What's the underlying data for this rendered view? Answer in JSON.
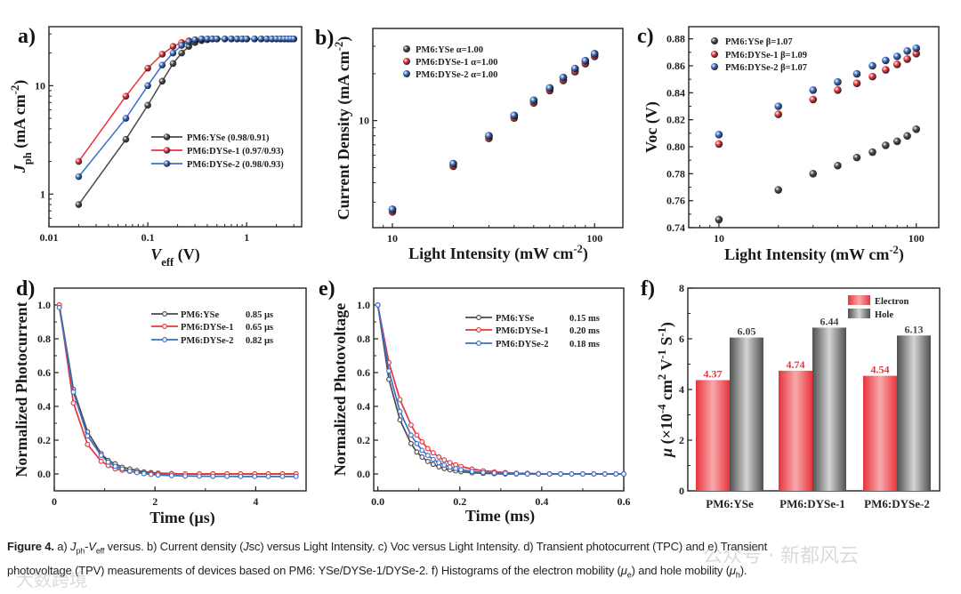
{
  "chart_data": [
    {
      "panel_label": "a)",
      "type": "line",
      "xscale": "log",
      "yscale": "log",
      "xlim": [
        0.01,
        3.6
      ],
      "ylim": [
        0.5,
        35
      ],
      "xticks": [
        {
          "v": 0.01,
          "l": "0.01"
        },
        {
          "v": 0.1,
          "l": "0.1"
        },
        {
          "v": 1,
          "l": "1"
        }
      ],
      "yticks": [
        {
          "v": 1,
          "l": "1"
        },
        {
          "v": 10,
          "l": "10"
        }
      ],
      "xlabel": [
        {
          "t": "V",
          "s": "i"
        },
        {
          "t": "eff",
          "s": "sub"
        },
        {
          "t": " (V)",
          "s": ""
        }
      ],
      "ylabel": [
        {
          "t": "J",
          "s": "i"
        },
        {
          "t": "ph",
          "s": "sub"
        },
        {
          "t": " (mA cm",
          "s": ""
        },
        {
          "t": "-2",
          "s": "sup"
        },
        {
          "t": ")",
          "s": ""
        }
      ],
      "x": [
        0.02,
        0.06,
        0.1,
        0.14,
        0.18,
        0.22,
        0.26,
        0.3,
        0.35,
        0.4,
        0.45,
        0.5,
        0.6,
        0.7,
        0.8,
        0.9,
        1.0,
        1.2,
        1.4,
        1.6,
        1.8,
        2.0,
        2.2,
        2.4,
        2.6,
        2.8,
        3.0
      ],
      "series": [
        {
          "name": "PM6:YSe",
          "legend": "PM6:YSe (0.98/0.91)",
          "color": "#4a4a4a",
          "y": [
            0.8,
            3.2,
            6.6,
            11,
            16,
            20,
            23,
            25,
            26,
            26.5,
            27,
            27,
            27,
            27,
            27,
            27,
            27,
            27,
            27,
            27,
            27,
            27,
            27,
            27,
            27,
            27,
            27
          ]
        },
        {
          "name": "PM6:DYSe-1",
          "legend": "PM6:DYSe-1 (0.97/0.93)",
          "color": "#e8343c",
          "y": [
            2.0,
            8.0,
            14.5,
            19.5,
            23,
            25,
            26,
            26.5,
            27,
            27,
            27,
            27,
            27,
            27,
            27,
            27,
            27,
            27,
            27,
            27,
            27,
            27,
            27,
            27,
            27,
            27,
            27
          ]
        },
        {
          "name": "PM6:DYSe-2",
          "legend": "PM6:DYSe-2 (0.98/0.93)",
          "color": "#3a6fc8",
          "y": [
            1.45,
            5.0,
            10.0,
            15.5,
            20,
            23.5,
            25.5,
            26.5,
            27,
            27,
            27,
            27,
            27,
            27,
            27,
            27,
            27,
            27,
            27,
            27,
            27,
            27,
            27,
            27,
            27,
            27,
            27
          ]
        }
      ]
    },
    {
      "panel_label": "b)",
      "type": "scatter",
      "xscale": "log",
      "yscale": "log",
      "xlim": [
        8,
        138
      ],
      "ylim": [
        2.06,
        39
      ],
      "xticks": [
        {
          "v": 10,
          "l": "10"
        },
        {
          "v": 100,
          "l": "100"
        }
      ],
      "yticks": [
        {
          "v": 10,
          "l": "10"
        }
      ],
      "xlabel": [
        {
          "t": "Light Intensity (mW cm",
          "s": ""
        },
        {
          "t": "-2",
          "s": "sup"
        },
        {
          "t": ")",
          "s": ""
        }
      ],
      "ylabel": [
        {
          "t": "Current Density (mA cm",
          "s": ""
        },
        {
          "t": "-2",
          "s": "sup"
        },
        {
          "t": ")",
          "s": ""
        }
      ],
      "x": [
        10,
        20,
        30,
        40,
        50,
        60,
        70,
        80,
        90,
        100
      ],
      "series": [
        {
          "name": "PM6:YSe",
          "legend": "PM6:YSe α=1.00",
          "color": "#4a4a4a",
          "y": [
            2.7,
            5.3,
            8.0,
            10.8,
            13.5,
            16.2,
            18.9,
            21.5,
            24.2,
            26.9
          ]
        },
        {
          "name": "PM6:DYSe-1",
          "legend": "PM6:DYSe-1 α=1.00",
          "color": "#e8343c",
          "y": [
            2.6,
            5.1,
            7.7,
            10.4,
            13.0,
            15.6,
            18.1,
            20.6,
            23.2,
            25.8
          ]
        },
        {
          "name": "PM6:DYSe-2",
          "legend": "PM6:DYSe-2 α=1.00",
          "color": "#3a6fc8",
          "y": [
            2.7,
            5.3,
            8.0,
            10.8,
            13.5,
            16.2,
            18.9,
            21.6,
            24.2,
            26.8
          ]
        }
      ]
    },
    {
      "panel_label": "c)",
      "type": "scatter",
      "xscale": "log",
      "yscale": "linear",
      "xlim": [
        7.03,
        130
      ],
      "ylim": [
        0.74,
        0.889
      ],
      "xticks": [
        {
          "v": 10,
          "l": "10"
        },
        {
          "v": 100,
          "l": "100"
        }
      ],
      "yticks": [
        {
          "v": 0.74,
          "l": "0.74"
        },
        {
          "v": 0.76,
          "l": "0.76"
        },
        {
          "v": 0.78,
          "l": "0.78"
        },
        {
          "v": 0.8,
          "l": "0.80"
        },
        {
          "v": 0.82,
          "l": "0.82"
        },
        {
          "v": 0.84,
          "l": "0.84"
        },
        {
          "v": 0.86,
          "l": "0.86"
        },
        {
          "v": 0.88,
          "l": "0.88"
        }
      ],
      "xlabel": [
        {
          "t": "Light Intensity (mW cm",
          "s": ""
        },
        {
          "t": "-2",
          "s": "sup"
        },
        {
          "t": ")",
          "s": ""
        }
      ],
      "ylabel": [
        {
          "t": "Voc (V)",
          "s": ""
        }
      ],
      "x": [
        10,
        20,
        30,
        40,
        50,
        60,
        70,
        80,
        90,
        100
      ],
      "series": [
        {
          "name": "PM6:YSe",
          "legend": "PM6:YSe  β=1.07",
          "color": "#4a4a4a",
          "y": [
            0.746,
            0.768,
            0.78,
            0.786,
            0.792,
            0.796,
            0.801,
            0.804,
            0.808,
            0.813
          ]
        },
        {
          "name": "PM6:DYSe-1",
          "legend": "PM6:DYSe-1 β=1.09",
          "color": "#e8343c",
          "y": [
            0.802,
            0.824,
            0.835,
            0.842,
            0.847,
            0.852,
            0.857,
            0.861,
            0.865,
            0.869
          ]
        },
        {
          "name": "PM6:DYSe-2",
          "legend": "PM6:DYSe-2 β=1.07",
          "color": "#3a6fc8",
          "y": [
            0.809,
            0.83,
            0.842,
            0.848,
            0.854,
            0.86,
            0.864,
            0.867,
            0.871,
            0.873
          ]
        }
      ]
    },
    {
      "panel_label": "d)",
      "type": "line",
      "xscale": "linear",
      "yscale": "linear",
      "xlim": [
        0,
        5
      ],
      "ylim": [
        -0.1,
        1.1
      ],
      "xticks": [
        {
          "v": 0,
          "l": "0"
        },
        {
          "v": 2,
          "l": "2"
        },
        {
          "v": 4,
          "l": "4"
        }
      ],
      "yticks": [
        {
          "v": 0,
          "l": "0.0"
        },
        {
          "v": 0.2,
          "l": "0.2"
        },
        {
          "v": 0.4,
          "l": "0.4"
        },
        {
          "v": 0.6,
          "l": "0.6"
        },
        {
          "v": 0.8,
          "l": "0.8"
        },
        {
          "v": 1.0,
          "l": "1.0"
        }
      ],
      "xlabel": [
        {
          "t": "Time (µs)",
          "s": ""
        }
      ],
      "ylabel": [
        {
          "t": "Normalized Photocurrent",
          "s": ""
        }
      ],
      "x": [
        0.1,
        0.38,
        0.66,
        0.93,
        1.07,
        1.21,
        1.35,
        1.5,
        1.64,
        1.78,
        1.92,
        2.06,
        2.33,
        2.6,
        2.88,
        3.15,
        3.43,
        3.7,
        3.98,
        4.25,
        4.53,
        4.8
      ],
      "series": [
        {
          "name": "PM6:YSe",
          "legend": "PM6:YSe",
          "value": "0.85 µs",
          "color": "#4a4a4a",
          "y": [
            1.0,
            0.5,
            0.25,
            0.12,
            0.08,
            0.06,
            0.04,
            0.03,
            0.02,
            0.012,
            0.008,
            0.005,
            0.002,
            0,
            0,
            0,
            0,
            0,
            0,
            0,
            0,
            0
          ]
        },
        {
          "name": "PM6:DYSe-1",
          "legend": "PM6:DYSe-1",
          "value": "0.65 µs",
          "color": "#e8343c",
          "y": [
            1.0,
            0.42,
            0.175,
            0.075,
            0.05,
            0.03,
            0.022,
            0.015,
            0.01,
            0.005,
            0.003,
            0.001,
            0,
            0,
            0,
            0,
            0,
            0,
            0,
            0,
            0,
            0
          ]
        },
        {
          "name": "PM6:DYSe-2",
          "legend": "PM6:DYSe-2",
          "value": "0.82 µs",
          "color": "#3a6fc8",
          "y": [
            0.985,
            0.485,
            0.225,
            0.11,
            0.07,
            0.045,
            0.03,
            0.017,
            0.008,
            0.002,
            -0.003,
            -0.006,
            -0.01,
            -0.012,
            -0.013,
            -0.014,
            -0.014,
            -0.015,
            -0.015,
            -0.015,
            -0.015,
            -0.015
          ]
        }
      ]
    },
    {
      "panel_label": "e)",
      "type": "line",
      "xscale": "linear",
      "yscale": "linear",
      "xlim": [
        -0.01,
        0.6
      ],
      "ylim": [
        -0.1,
        1.1
      ],
      "xticks": [
        {
          "v": 0,
          "l": "0.0"
        },
        {
          "v": 0.2,
          "l": "0.2"
        },
        {
          "v": 0.4,
          "l": "0.4"
        },
        {
          "v": 0.6,
          "l": "0.6"
        }
      ],
      "yticks": [
        {
          "v": 0,
          "l": "0.0"
        },
        {
          "v": 0.2,
          "l": "0.2"
        },
        {
          "v": 0.4,
          "l": "0.4"
        },
        {
          "v": 0.6,
          "l": "0.6"
        },
        {
          "v": 0.8,
          "l": "0.8"
        },
        {
          "v": 1.0,
          "l": "1.0"
        }
      ],
      "xlabel": [
        {
          "t": "Time (ms)",
          "s": ""
        }
      ],
      "ylabel": [
        {
          "t": "Normalized Photovoltage",
          "s": ""
        }
      ],
      "x": [
        0,
        0.027,
        0.054,
        0.081,
        0.095,
        0.108,
        0.122,
        0.135,
        0.149,
        0.162,
        0.176,
        0.19,
        0.203,
        0.23,
        0.257,
        0.284,
        0.311,
        0.338,
        0.365,
        0.392,
        0.419,
        0.446,
        0.473,
        0.5,
        0.527,
        0.554,
        0.581,
        0.6
      ],
      "series": [
        {
          "name": "PM6:YSe",
          "legend": "PM6:YSe",
          "value": "0.15 ms",
          "color": "#4a4a4a",
          "y": [
            1,
            0.56,
            0.32,
            0.18,
            0.13,
            0.1,
            0.074,
            0.057,
            0.042,
            0.032,
            0.024,
            0.018,
            0.013,
            0.007,
            0.004,
            0.002,
            0,
            0,
            0,
            0,
            0,
            0,
            0,
            0,
            0,
            0,
            0,
            0
          ]
        },
        {
          "name": "PM6:DYSe-1",
          "legend": "PM6:DYSe-1",
          "value": "0.20 ms",
          "color": "#e8343c",
          "y": [
            1,
            0.66,
            0.44,
            0.29,
            0.23,
            0.19,
            0.15,
            0.125,
            0.1,
            0.083,
            0.067,
            0.054,
            0.044,
            0.029,
            0.019,
            0.013,
            0.008,
            0.005,
            0.004,
            0.002,
            0,
            0,
            0,
            0,
            0,
            0,
            0,
            0
          ]
        },
        {
          "name": "PM6:DYSe-2",
          "legend": "PM6:DYSe-2",
          "value": "0.18 ms",
          "color": "#3a6fc8",
          "y": [
            1,
            0.61,
            0.37,
            0.23,
            0.18,
            0.14,
            0.11,
            0.086,
            0.067,
            0.053,
            0.041,
            0.032,
            0.025,
            0.015,
            0.009,
            0.006,
            0.004,
            0.002,
            0,
            0,
            0,
            0,
            0,
            0,
            0,
            0,
            0,
            0
          ]
        }
      ]
    },
    {
      "panel_label": "f)",
      "type": "bar",
      "xscale": "category",
      "yscale": "linear",
      "ylim": [
        0,
        8
      ],
      "yticks": [
        {
          "v": 0,
          "l": "0"
        },
        {
          "v": 2,
          "l": "2"
        },
        {
          "v": 4,
          "l": "4"
        },
        {
          "v": 6,
          "l": "6"
        },
        {
          "v": 8,
          "l": "8"
        }
      ],
      "ylabel": [
        {
          "t": "μ",
          "s": "i"
        },
        {
          "t": " (×10",
          "s": ""
        },
        {
          "t": "-4",
          "s": "sup"
        },
        {
          "t": " cm",
          "s": ""
        },
        {
          "t": "2",
          "s": "sup"
        },
        {
          "t": " V",
          "s": ""
        },
        {
          "t": "-1",
          "s": "sup"
        },
        {
          "t": " S",
          "s": ""
        },
        {
          "t": "-1",
          "s": "sup"
        },
        {
          "t": ")",
          "s": ""
        }
      ],
      "categories": [
        "PM6:YSe",
        "PM6:DYSe-1",
        "PM6:DYSe-2"
      ],
      "series": [
        {
          "name": "Electron",
          "legend": "Electron",
          "color": "#e8343c",
          "values": [
            4.37,
            4.74,
            4.54
          ]
        },
        {
          "name": "Hole",
          "legend": "Hole",
          "color": "#5a5a5a",
          "values": [
            6.05,
            6.44,
            6.13
          ]
        }
      ]
    }
  ],
  "caption": {
    "parts": [
      {
        "t": "Figure 4.",
        "s": "b"
      },
      {
        "t": "  a) ",
        "s": ""
      },
      {
        "t": "J",
        "s": "i"
      },
      {
        "t": "ph",
        "s": "sub"
      },
      {
        "t": "-",
        "s": ""
      },
      {
        "t": "V",
        "s": "i"
      },
      {
        "t": "eff",
        "s": "sub"
      },
      {
        "t": " versus. b) Current density (",
        "s": ""
      },
      {
        "t": "J",
        "s": "i"
      },
      {
        "t": "sc) versus Light Intensity. c) Voc versus Light Intensity. d) Transient photocurrent (TPC) and e) Transient",
        "s": ""
      },
      {
        "t": "",
        "s": "br"
      },
      {
        "t": "photovoltage (TPV) measurements of devices based on PM6: YSe/DYSe-1/DYSe-2. f) Histograms of the electron mobility (",
        "s": ""
      },
      {
        "t": "μ",
        "s": "i"
      },
      {
        "t": "e",
        "s": "sub"
      },
      {
        "t": ") and hole mobility (",
        "s": ""
      },
      {
        "t": "μ",
        "s": "i"
      },
      {
        "t": "h",
        "s": "sub"
      },
      {
        "t": ").",
        "s": ""
      }
    ]
  },
  "watermarks": {
    "right": "公众号 · 新都风云",
    "left": "大数跨境"
  }
}
